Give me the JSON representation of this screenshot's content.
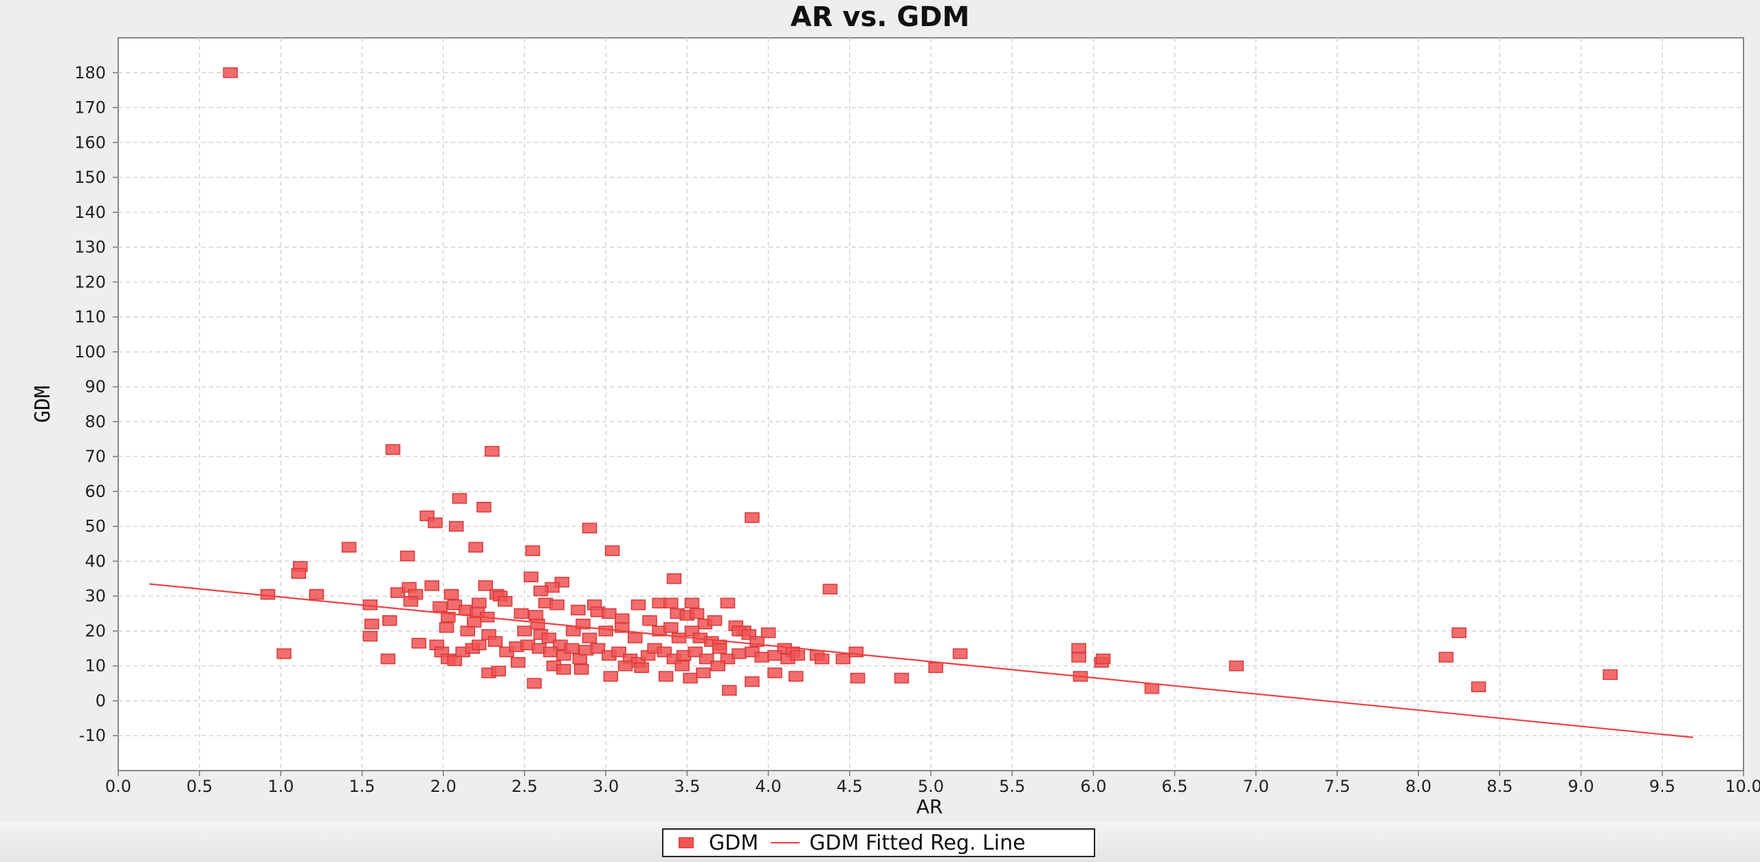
{
  "chart_data": {
    "type": "scatter",
    "title": "AR vs. GDM",
    "xlabel": "AR",
    "ylabel": "GDM",
    "xlim": [
      0.0,
      10.0
    ],
    "ylim": [
      -20,
      190
    ],
    "x_ticks": [
      "0.0",
      "0.5",
      "1.0",
      "1.5",
      "2.0",
      "2.5",
      "3.0",
      "3.5",
      "4.0",
      "4.5",
      "5.0",
      "5.5",
      "6.0",
      "6.5",
      "7.0",
      "7.5",
      "8.0",
      "8.5",
      "9.0",
      "9.5",
      "10.0"
    ],
    "y_ticks": [
      "-10",
      "0",
      "10",
      "20",
      "30",
      "40",
      "50",
      "60",
      "70",
      "80",
      "90",
      "100",
      "110",
      "120",
      "130",
      "140",
      "150",
      "160",
      "170",
      "180"
    ],
    "grid": true,
    "legend_position": "bottom",
    "series": [
      {
        "name": "GDM",
        "kind": "points",
        "color": "#f05454",
        "points": [
          [
            0.69,
            180
          ],
          [
            1.69,
            72
          ],
          [
            2.3,
            71.5
          ],
          [
            2.1,
            58
          ],
          [
            2.25,
            55.5
          ],
          [
            1.9,
            53
          ],
          [
            1.95,
            51
          ],
          [
            2.08,
            50
          ],
          [
            2.9,
            49.5
          ],
          [
            3.9,
            52.5
          ],
          [
            1.42,
            44
          ],
          [
            2.2,
            44
          ],
          [
            2.55,
            43
          ],
          [
            3.04,
            43
          ],
          [
            1.78,
            41.5
          ],
          [
            1.12,
            38.5
          ],
          [
            1.11,
            36.5
          ],
          [
            2.54,
            35.5
          ],
          [
            3.42,
            35
          ],
          [
            2.73,
            34
          ],
          [
            4.38,
            32
          ],
          [
            2.67,
            32.5
          ],
          [
            2.6,
            31.5
          ],
          [
            0.92,
            30.5
          ],
          [
            1.22,
            30.5
          ],
          [
            1.72,
            31
          ],
          [
            1.79,
            32.5
          ],
          [
            1.93,
            33
          ],
          [
            2.26,
            33
          ],
          [
            2.05,
            30.5
          ],
          [
            1.83,
            30.5
          ],
          [
            2.33,
            30.5
          ],
          [
            2.35,
            30
          ],
          [
            1.55,
            27.5
          ],
          [
            1.8,
            28.5
          ],
          [
            1.98,
            27
          ],
          [
            2.07,
            27.5
          ],
          [
            2.14,
            26
          ],
          [
            2.21,
            25.5
          ],
          [
            2.22,
            28
          ],
          [
            2.27,
            24
          ],
          [
            2.38,
            28.5
          ],
          [
            2.48,
            25
          ],
          [
            2.57,
            24.5
          ],
          [
            2.63,
            28
          ],
          [
            2.7,
            27.5
          ],
          [
            2.83,
            26
          ],
          [
            2.93,
            27.5
          ],
          [
            2.95,
            25.5
          ],
          [
            3.02,
            25
          ],
          [
            3.1,
            23.5
          ],
          [
            3.2,
            27.5
          ],
          [
            3.33,
            28
          ],
          [
            3.4,
            28
          ],
          [
            3.44,
            25
          ],
          [
            3.5,
            24.5
          ],
          [
            3.53,
            28
          ],
          [
            3.56,
            25
          ],
          [
            3.61,
            22
          ],
          [
            3.67,
            23
          ],
          [
            3.75,
            28
          ],
          [
            3.8,
            21.5
          ],
          [
            3.85,
            20
          ],
          [
            1.56,
            22
          ],
          [
            1.55,
            18.5
          ],
          [
            1.67,
            23
          ],
          [
            2.02,
            21
          ],
          [
            2.03,
            24
          ],
          [
            2.15,
            20
          ],
          [
            2.19,
            22.5
          ],
          [
            2.28,
            19
          ],
          [
            2.5,
            20
          ],
          [
            2.58,
            22
          ],
          [
            2.6,
            19
          ],
          [
            2.65,
            18
          ],
          [
            2.72,
            16
          ],
          [
            2.8,
            20
          ],
          [
            2.86,
            22
          ],
          [
            2.9,
            18
          ],
          [
            3.0,
            20
          ],
          [
            3.1,
            21
          ],
          [
            3.18,
            18
          ],
          [
            3.27,
            23
          ],
          [
            3.33,
            20
          ],
          [
            3.4,
            21
          ],
          [
            3.45,
            18
          ],
          [
            3.53,
            20
          ],
          [
            3.58,
            18
          ],
          [
            3.65,
            17
          ],
          [
            3.7,
            16
          ],
          [
            3.82,
            20
          ],
          [
            3.88,
            19
          ],
          [
            3.93,
            17
          ],
          [
            4.0,
            19.5
          ],
          [
            4.1,
            15
          ],
          [
            4.15,
            14
          ],
          [
            1.02,
            13.5
          ],
          [
            1.66,
            12
          ],
          [
            1.85,
            16.5
          ],
          [
            1.96,
            16
          ],
          [
            1.99,
            14
          ],
          [
            2.03,
            12
          ],
          [
            2.07,
            11.5
          ],
          [
            2.12,
            14
          ],
          [
            2.18,
            15
          ],
          [
            2.22,
            16
          ],
          [
            2.32,
            17
          ],
          [
            2.39,
            14
          ],
          [
            2.45,
            15.5
          ],
          [
            2.52,
            16
          ],
          [
            2.59,
            15
          ],
          [
            2.66,
            14
          ],
          [
            2.74,
            13
          ],
          [
            2.79,
            15
          ],
          [
            2.84,
            12
          ],
          [
            2.88,
            14.5
          ],
          [
            2.95,
            15
          ],
          [
            3.02,
            13
          ],
          [
            3.08,
            14
          ],
          [
            3.15,
            12
          ],
          [
            3.2,
            11
          ],
          [
            3.26,
            13
          ],
          [
            3.3,
            15
          ],
          [
            3.36,
            14
          ],
          [
            3.42,
            12
          ],
          [
            3.48,
            13
          ],
          [
            3.55,
            14
          ],
          [
            3.62,
            12
          ],
          [
            3.7,
            15
          ],
          [
            3.75,
            12
          ],
          [
            3.82,
            13.5
          ],
          [
            3.9,
            14
          ],
          [
            3.96,
            12.5
          ],
          [
            4.04,
            13
          ],
          [
            4.12,
            12
          ],
          [
            4.18,
            13
          ],
          [
            4.3,
            13
          ],
          [
            4.46,
            12
          ],
          [
            4.54,
            14
          ],
          [
            2.28,
            8
          ],
          [
            2.34,
            8.5
          ],
          [
            2.46,
            11
          ],
          [
            2.56,
            5
          ],
          [
            2.68,
            10
          ],
          [
            2.74,
            9
          ],
          [
            2.85,
            9
          ],
          [
            3.03,
            7
          ],
          [
            3.12,
            10
          ],
          [
            3.22,
            9.5
          ],
          [
            3.37,
            7
          ],
          [
            3.47,
            10
          ],
          [
            3.52,
            6.5
          ],
          [
            3.6,
            8
          ],
          [
            3.69,
            10
          ],
          [
            3.76,
            3
          ],
          [
            3.9,
            5.5
          ],
          [
            4.04,
            8
          ],
          [
            4.17,
            7
          ],
          [
            4.33,
            12
          ],
          [
            4.55,
            6.5
          ],
          [
            4.82,
            6.5
          ],
          [
            5.03,
            9.5
          ],
          [
            5.18,
            13.5
          ],
          [
            5.91,
            15
          ],
          [
            5.91,
            12.5
          ],
          [
            5.92,
            7
          ],
          [
            6.05,
            11
          ],
          [
            6.06,
            12
          ],
          [
            6.36,
            3.5
          ],
          [
            6.88,
            10
          ],
          [
            8.17,
            12.5
          ],
          [
            8.25,
            19.5
          ],
          [
            8.37,
            4
          ],
          [
            9.18,
            7.5
          ]
        ]
      },
      {
        "name": "GDM Fitted Reg. Line",
        "kind": "line",
        "color": "#f04040",
        "x": [
          0.19,
          9.69
        ],
        "y": [
          33.5,
          -10.5
        ]
      }
    ]
  }
}
